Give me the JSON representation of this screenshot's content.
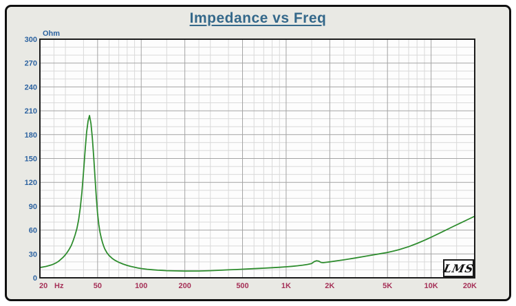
{
  "window": {
    "background_color": "#ffffff",
    "frame_fill": "#e9e9e4",
    "frame_border_color": "#0f0f0f"
  },
  "header": {
    "title": "Impedance vs Freq",
    "title_color": "#34688a"
  },
  "branding": {
    "logo_text": "LMS"
  },
  "axis_colors": {
    "y_label_color": "#2d63a0",
    "x_label_color": "#a53057"
  },
  "chart_data": {
    "type": "line",
    "title": "Impedance vs Freq",
    "legend_position": "none",
    "grid": {
      "minor_color": "#d9d9d9",
      "major_color": "#a3a3a3",
      "border_color": "#1a1a1a",
      "plot_bg": "#fdfdfd"
    },
    "x_axis": {
      "scale": "log",
      "min": 20,
      "max": 20000,
      "unit": "Hz",
      "tick_labels": [
        {
          "value": 20,
          "label": "20"
        },
        {
          "value": 50,
          "label": "50"
        },
        {
          "value": 100,
          "label": "100"
        },
        {
          "value": 200,
          "label": "200"
        },
        {
          "value": 500,
          "label": "500"
        },
        {
          "value": 1000,
          "label": "1K"
        },
        {
          "value": 2000,
          "label": "2K"
        },
        {
          "value": 5000,
          "label": "5K"
        },
        {
          "value": 10000,
          "label": "10K"
        },
        {
          "value": 20000,
          "label": "20K"
        }
      ],
      "major_gridlines": [
        50,
        100,
        200,
        500,
        1000,
        2000,
        5000,
        10000
      ],
      "minor_gridlines": [
        25,
        30,
        40,
        60,
        70,
        80,
        90,
        150,
        250,
        300,
        400,
        600,
        700,
        800,
        900,
        1500,
        2500,
        3000,
        4000,
        6000,
        7000,
        8000,
        9000,
        15000
      ]
    },
    "y_axis": {
      "scale": "linear",
      "min": 0,
      "max": 300,
      "unit": "Ohm",
      "major_step": 30,
      "minor_step": 10
    },
    "series": [
      {
        "name": "Impedance",
        "color": "#2d8c2d",
        "points": [
          [
            20,
            13
          ],
          [
            21,
            13.6
          ],
          [
            22,
            14.3
          ],
          [
            23,
            15.2
          ],
          [
            24,
            16.2
          ],
          [
            25,
            17.5
          ],
          [
            26,
            19
          ],
          [
            27,
            21
          ],
          [
            28,
            23.5
          ],
          [
            29,
            26
          ],
          [
            30,
            29
          ],
          [
            31,
            32.5
          ],
          [
            32,
            36.5
          ],
          [
            33,
            41
          ],
          [
            34,
            47
          ],
          [
            35,
            54
          ],
          [
            36,
            62
          ],
          [
            37,
            73
          ],
          [
            38,
            88
          ],
          [
            39,
            108
          ],
          [
            40,
            133
          ],
          [
            41,
            160
          ],
          [
            42,
            183
          ],
          [
            43,
            197
          ],
          [
            44,
            204
          ],
          [
            45,
            194
          ],
          [
            46,
            176
          ],
          [
            47,
            152
          ],
          [
            48,
            126
          ],
          [
            49,
            101
          ],
          [
            50,
            81
          ],
          [
            51,
            67
          ],
          [
            52,
            57
          ],
          [
            53,
            50
          ],
          [
            54,
            44.5
          ],
          [
            55,
            40
          ],
          [
            56,
            36.5
          ],
          [
            58,
            31.5
          ],
          [
            60,
            28
          ],
          [
            63,
            24.5
          ],
          [
            66,
            22
          ],
          [
            70,
            19.5
          ],
          [
            75,
            17.3
          ],
          [
            80,
            15.6
          ],
          [
            85,
            14.3
          ],
          [
            90,
            13.3
          ],
          [
            95,
            12.4
          ],
          [
            100,
            11.7
          ],
          [
            110,
            10.7
          ],
          [
            120,
            10.1
          ],
          [
            130,
            9.6
          ],
          [
            140,
            9.3
          ],
          [
            150,
            9.0
          ],
          [
            170,
            8.7
          ],
          [
            200,
            8.5
          ],
          [
            250,
            8.6
          ],
          [
            300,
            9.0
          ],
          [
            350,
            9.5
          ],
          [
            400,
            10.0
          ],
          [
            450,
            10.4
          ],
          [
            500,
            10.8
          ],
          [
            600,
            11.5
          ],
          [
            700,
            12.1
          ],
          [
            800,
            12.7
          ],
          [
            900,
            13.2
          ],
          [
            1000,
            13.8
          ],
          [
            1100,
            14.4
          ],
          [
            1200,
            15.1
          ],
          [
            1300,
            15.9
          ],
          [
            1400,
            16.8
          ],
          [
            1500,
            18.0
          ],
          [
            1560,
            20.3
          ],
          [
            1620,
            21.4
          ],
          [
            1680,
            20.9
          ],
          [
            1740,
            19.4
          ],
          [
            1800,
            19.0
          ],
          [
            1900,
            19.5
          ],
          [
            2000,
            20.1
          ],
          [
            2200,
            21.2
          ],
          [
            2500,
            22.6
          ],
          [
            3000,
            24.9
          ],
          [
            3500,
            27.0
          ],
          [
            4000,
            28.9
          ],
          [
            4500,
            30.4
          ],
          [
            5000,
            31.9
          ],
          [
            5500,
            33.6
          ],
          [
            6000,
            35.4
          ],
          [
            7000,
            39.2
          ],
          [
            8000,
            43.2
          ],
          [
            9000,
            47.2
          ],
          [
            10000,
            51
          ],
          [
            11000,
            54.6
          ],
          [
            12000,
            58
          ],
          [
            14000,
            64
          ],
          [
            16000,
            69
          ],
          [
            18000,
            73.5
          ],
          [
            20000,
            77.5
          ]
        ]
      }
    ]
  }
}
